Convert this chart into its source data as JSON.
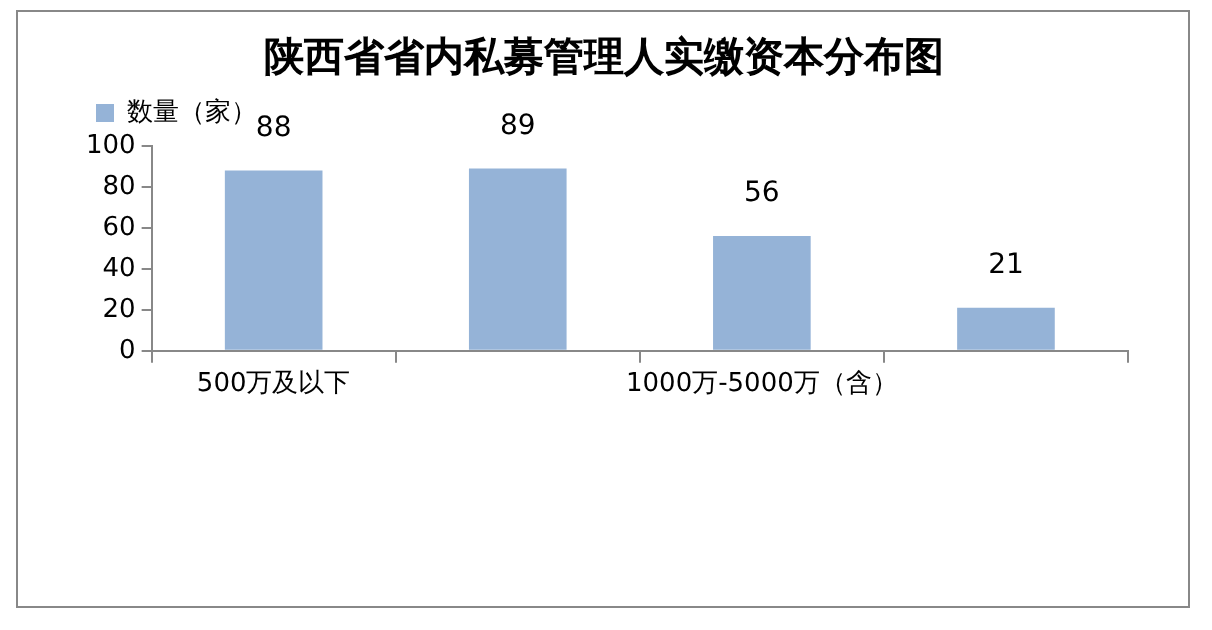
{
  "chart_data": {
    "type": "bar",
    "title": "陕西省省内私募管理人实缴资本分布图",
    "categories": [
      "500万及以下",
      null,
      "1000万-5000万（含）",
      null
    ],
    "series": [
      {
        "name": "数量（家）",
        "color": "#95b3d7",
        "values": [
          88,
          89,
          56,
          21
        ]
      }
    ],
    "ylim": [
      0,
      100
    ],
    "yticks": [
      0,
      20,
      40,
      60,
      80,
      100
    ],
    "grid": false,
    "legend": "top left",
    "data_labels": true
  }
}
